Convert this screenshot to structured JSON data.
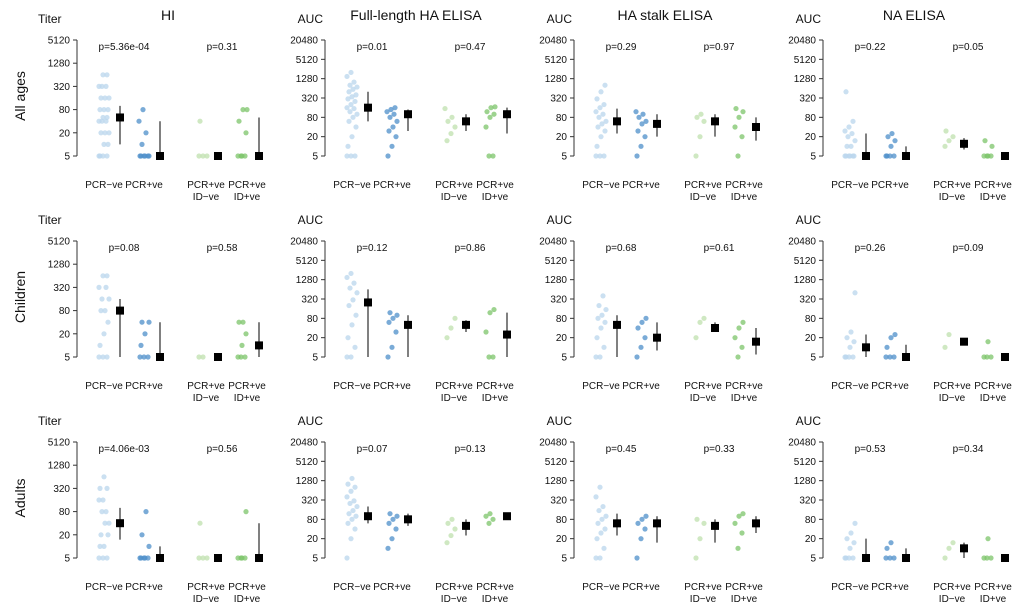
{
  "colors": {
    "pcr_neg": "#b9d5ec",
    "pcr_pos": "#4d8fc9",
    "id_neg": "#bfe0ae",
    "id_pos": "#7cc46a",
    "summary": "#000000"
  },
  "columns": [
    {
      "title": "HI",
      "ylabel": "Titer",
      "ticks": [
        "5120",
        "1280",
        "320",
        "80",
        "20",
        "5"
      ]
    },
    {
      "title": "Full-length HA ELISA",
      "ylabel": "AUC",
      "ticks": [
        "20480",
        "5120",
        "1280",
        "320",
        "80",
        "20",
        "5"
      ]
    },
    {
      "title": "HA stalk ELISA",
      "ylabel": "AUC",
      "ticks": [
        "20480",
        "5120",
        "1280",
        "320",
        "80",
        "20",
        "5"
      ]
    },
    {
      "title": "NA ELISA",
      "ylabel": "AUC",
      "ticks": [
        "20480",
        "5120",
        "1280",
        "320",
        "80",
        "20",
        "5"
      ]
    }
  ],
  "rows": [
    "All ages",
    "Children",
    "Adults"
  ],
  "groups": [
    {
      "line1": "PCR−ve",
      "line2": ""
    },
    {
      "line1": "PCR+ve",
      "line2": ""
    },
    {
      "line1": "PCR+ve",
      "line2": "ID−ve"
    },
    {
      "line1": "PCR+ve",
      "line2": "ID+ve"
    }
  ],
  "chart_data": {
    "type": "scatter",
    "y_scale": "log2",
    "ylim": {
      "Titer": [
        5,
        5120
      ],
      "AUC": [
        5,
        20480
      ]
    },
    "panels": [
      {
        "row": "All ages",
        "column": "HI",
        "p_values": [
          "p=5.36e-04",
          "p=0.31"
        ],
        "groups": [
          {
            "group": "PCR−ve",
            "median": 50,
            "low": 10,
            "high": 100,
            "points": [
              5,
              5,
              5,
              5,
              10,
              10,
              20,
              20,
              20,
              40,
              40,
              40,
              50,
              50,
              80,
              80,
              80,
              160,
              160,
              160,
              320,
              320,
              320,
              640,
              640
            ]
          },
          {
            "group": "PCR+ve",
            "median": 5,
            "low": 5,
            "high": 40,
            "points": [
              5,
              5,
              5,
              5,
              5,
              5,
              10,
              20,
              40,
              80
            ]
          },
          {
            "group": "PCR+ve ID−ve",
            "median": 5,
            "low": 5,
            "high": 5,
            "points": [
              5,
              5,
              5,
              40
            ]
          },
          {
            "group": "PCR+ve ID+ve",
            "median": 5,
            "low": 5,
            "high": 50,
            "points": [
              5,
              5,
              5,
              5,
              20,
              40,
              80,
              80
            ]
          }
        ]
      },
      {
        "row": "All ages",
        "column": "Full-length HA ELISA",
        "p_values": [
          "p=0.01",
          "p=0.47"
        ],
        "groups": [
          {
            "group": "PCR−ve",
            "median": 160,
            "low": 60,
            "high": 500,
            "points": [
              5,
              5,
              5,
              10,
              20,
              40,
              60,
              80,
              100,
              120,
              150,
              160,
              200,
              250,
              300,
              350,
              400,
              500,
              600,
              700,
              800,
              1000,
              1500,
              2000
            ]
          },
          {
            "group": "PCR+ve",
            "median": 100,
            "low": 30,
            "high": 140,
            "points": [
              5,
              10,
              20,
              30,
              40,
              60,
              80,
              100,
              120,
              140,
              160
            ]
          },
          {
            "group": "PCR+ve ID−ve",
            "median": 60,
            "low": 30,
            "high": 100,
            "points": [
              15,
              25,
              40,
              60,
              80,
              150
            ]
          },
          {
            "group": "PCR+ve ID+ve",
            "median": 100,
            "low": 25,
            "high": 160,
            "points": [
              5,
              5,
              40,
              80,
              100,
              120,
              160,
              170
            ]
          }
        ]
      },
      {
        "row": "All ages",
        "column": "HA stalk ELISA",
        "p_values": [
          "p=0.29",
          "p=0.97"
        ],
        "groups": [
          {
            "group": "PCR−ve",
            "median": 60,
            "low": 25,
            "high": 150,
            "points": [
              5,
              5,
              5,
              10,
              20,
              30,
              40,
              50,
              60,
              80,
              100,
              120,
              160,
              200,
              300,
              500,
              800
            ]
          },
          {
            "group": "PCR+ve",
            "median": 50,
            "low": 20,
            "high": 100,
            "points": [
              5,
              10,
              20,
              30,
              50,
              60,
              80,
              100,
              120
            ]
          },
          {
            "group": "PCR+ve ID−ve",
            "median": 60,
            "low": 20,
            "high": 100,
            "points": [
              5,
              20,
              60,
              80,
              100
            ]
          },
          {
            "group": "PCR+ve ID+ve",
            "median": 40,
            "low": 15,
            "high": 80,
            "points": [
              5,
              20,
              40,
              80,
              120,
              150
            ]
          }
        ]
      },
      {
        "row": "All ages",
        "column": "NA ELISA",
        "p_values": [
          "p=0.22",
          "p=0.05"
        ],
        "groups": [
          {
            "group": "PCR−ve",
            "median": 5,
            "low": 5,
            "high": 25,
            "points": [
              5,
              5,
              5,
              5,
              5,
              5,
              10,
              10,
              15,
              20,
              25,
              30,
              40,
              60,
              500
            ]
          },
          {
            "group": "PCR+ve",
            "median": 5,
            "low": 5,
            "high": 10,
            "points": [
              5,
              5,
              5,
              5,
              10,
              15,
              20,
              25
            ]
          },
          {
            "group": "PCR+ve ID−ve",
            "median": 12,
            "low": 8,
            "high": 18,
            "points": [
              10,
              15,
              20,
              30
            ]
          },
          {
            "group": "PCR+ve ID+ve",
            "median": 5,
            "low": 5,
            "high": 5,
            "points": [
              5,
              5,
              5,
              5,
              10,
              15
            ]
          }
        ]
      },
      {
        "row": "Children",
        "column": "HI",
        "p_values": [
          "p=0.08",
          "p=0.58"
        ],
        "groups": [
          {
            "group": "PCR−ve",
            "median": 80,
            "low": 5,
            "high": 160,
            "points": [
              5,
              5,
              5,
              10,
              20,
              40,
              80,
              80,
              160,
              160,
              320,
              320,
              640,
              640
            ]
          },
          {
            "group": "PCR+ve",
            "median": 5,
            "low": 5,
            "high": 40,
            "points": [
              5,
              5,
              5,
              10,
              20,
              40,
              40
            ]
          },
          {
            "group": "PCR+ve ID−ve",
            "median": 5,
            "low": 5,
            "high": 5,
            "points": [
              5,
              5
            ]
          },
          {
            "group": "PCR+ve ID+ve",
            "median": 10,
            "low": 5,
            "high": 40,
            "points": [
              5,
              5,
              5,
              10,
              20,
              40,
              40
            ]
          }
        ]
      },
      {
        "row": "Children",
        "column": "Full-length HA ELISA",
        "p_values": [
          "p=0.12",
          "p=0.86"
        ],
        "groups": [
          {
            "group": "PCR−ve",
            "median": 250,
            "low": 5,
            "high": 640,
            "points": [
              5,
              5,
              10,
              20,
              50,
              100,
              200,
              300,
              500,
              700,
              1000,
              1500,
              2000
            ]
          },
          {
            "group": "PCR+ve",
            "median": 50,
            "low": 5,
            "high": 100,
            "points": [
              5,
              10,
              30,
              60,
              80,
              100,
              120
            ]
          },
          {
            "group": "PCR+ve ID−ve",
            "median": 50,
            "low": 30,
            "high": 70,
            "points": [
              20,
              40,
              80
            ]
          },
          {
            "group": "PCR+ve ID+ve",
            "median": 25,
            "low": 5,
            "high": 120,
            "points": [
              5,
              5,
              30,
              120,
              150
            ]
          }
        ]
      },
      {
        "row": "Children",
        "column": "HA stalk ELISA",
        "p_values": [
          "p=0.68",
          "p=0.61"
        ],
        "groups": [
          {
            "group": "PCR−ve",
            "median": 50,
            "low": 5,
            "high": 100,
            "points": [
              5,
              5,
              10,
              20,
              40,
              60,
              80,
              100,
              150,
              200,
              400
            ]
          },
          {
            "group": "PCR+ve",
            "median": 20,
            "low": 8,
            "high": 60,
            "points": [
              5,
              10,
              20,
              40,
              60,
              80
            ]
          },
          {
            "group": "PCR+ve ID−ve",
            "median": 40,
            "low": 30,
            "high": 60,
            "points": [
              20,
              60,
              80
            ]
          },
          {
            "group": "PCR+ve ID+ve",
            "median": 15,
            "low": 6,
            "high": 40,
            "points": [
              5,
              10,
              20,
              40,
              60
            ]
          }
        ]
      },
      {
        "row": "Children",
        "column": "NA ELISA",
        "p_values": [
          "p=0.26",
          "p=0.09"
        ],
        "groups": [
          {
            "group": "PCR−ve",
            "median": 10,
            "low": 5,
            "high": 25,
            "points": [
              5,
              5,
              5,
              5,
              10,
              15,
              20,
              30,
              500
            ]
          },
          {
            "group": "PCR+ve",
            "median": 5,
            "low": 5,
            "high": 12,
            "points": [
              5,
              5,
              5,
              10,
              20,
              25
            ]
          },
          {
            "group": "PCR+ve ID−ve",
            "median": 15,
            "low": 15,
            "high": 15,
            "points": [
              10,
              25
            ]
          },
          {
            "group": "PCR+ve ID+ve",
            "median": 5,
            "low": 5,
            "high": 5,
            "points": [
              5,
              5,
              5,
              15
            ]
          }
        ]
      },
      {
        "row": "Adults",
        "column": "HI",
        "p_values": [
          "p=4.06e-03",
          "p=0.56"
        ],
        "groups": [
          {
            "group": "PCR−ve",
            "median": 40,
            "low": 15,
            "high": 100,
            "points": [
              5,
              5,
              5,
              10,
              10,
              20,
              20,
              40,
              40,
              80,
              80,
              160,
              160,
              320,
              320,
              640
            ]
          },
          {
            "group": "PCR+ve",
            "median": 5,
            "low": 5,
            "high": 10,
            "points": [
              5,
              5,
              5,
              5,
              5,
              10,
              20,
              80
            ]
          },
          {
            "group": "PCR+ve ID−ve",
            "median": 5,
            "low": 5,
            "high": 5,
            "points": [
              5,
              5,
              5,
              40
            ]
          },
          {
            "group": "PCR+ve ID+ve",
            "median": 5,
            "low": 5,
            "high": 40,
            "points": [
              5,
              5,
              5,
              5,
              80
            ]
          }
        ]
      },
      {
        "row": "Adults",
        "column": "Full-length HA ELISA",
        "p_values": [
          "p=0.07",
          "p=0.13"
        ],
        "groups": [
          {
            "group": "PCR−ve",
            "median": 100,
            "low": 60,
            "high": 200,
            "points": [
              5,
              20,
              40,
              60,
              80,
              100,
              120,
              150,
              200,
              250,
              300,
              400,
              600,
              800,
              1000,
              1500
            ]
          },
          {
            "group": "PCR+ve",
            "median": 80,
            "low": 50,
            "high": 120,
            "points": [
              10,
              20,
              40,
              60,
              80,
              100,
              120
            ]
          },
          {
            "group": "PCR+ve ID−ve",
            "median": 50,
            "low": 25,
            "high": 80,
            "points": [
              15,
              25,
              40,
              60,
              80
            ]
          },
          {
            "group": "PCR+ve ID+ve",
            "median": 100,
            "low": 100,
            "high": 100,
            "points": [
              60,
              80,
              100,
              120
            ]
          }
        ]
      },
      {
        "row": "Adults",
        "column": "HA stalk ELISA",
        "p_values": [
          "p=0.45",
          "p=0.33"
        ],
        "groups": [
          {
            "group": "PCR−ve",
            "median": 60,
            "low": 25,
            "high": 120,
            "points": [
              5,
              5,
              10,
              20,
              30,
              40,
              60,
              80,
              100,
              150,
              200,
              400,
              800
            ]
          },
          {
            "group": "PCR+ve",
            "median": 60,
            "low": 15,
            "high": 100,
            "points": [
              5,
              20,
              40,
              60,
              80,
              100
            ]
          },
          {
            "group": "PCR+ve ID−ve",
            "median": 50,
            "low": 15,
            "high": 80,
            "points": [
              5,
              20,
              60,
              80
            ]
          },
          {
            "group": "PCR+ve ID+ve",
            "median": 60,
            "low": 30,
            "high": 100,
            "points": [
              10,
              30,
              60,
              100,
              120
            ]
          }
        ]
      },
      {
        "row": "Adults",
        "column": "NA ELISA",
        "p_values": [
          "p=0.53",
          "p=0.34"
        ],
        "groups": [
          {
            "group": "PCR−ve",
            "median": 5,
            "low": 5,
            "high": 20,
            "points": [
              5,
              5,
              5,
              5,
              10,
              15,
              20,
              30,
              60
            ]
          },
          {
            "group": "PCR+ve",
            "median": 5,
            "low": 5,
            "high": 10,
            "points": [
              5,
              5,
              5,
              10,
              15
            ]
          },
          {
            "group": "PCR+ve ID−ve",
            "median": 10,
            "low": 5,
            "high": 15,
            "points": [
              5,
              10,
              15
            ]
          },
          {
            "group": "PCR+ve ID+ve",
            "median": 5,
            "low": 5,
            "high": 5,
            "points": [
              5,
              5,
              5,
              20
            ]
          }
        ]
      }
    ]
  }
}
